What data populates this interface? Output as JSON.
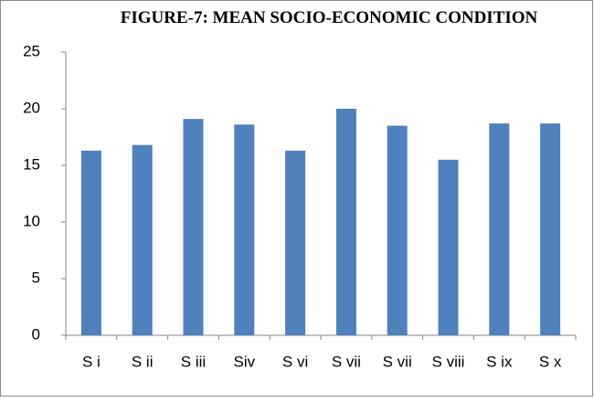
{
  "chart_data": {
    "type": "bar",
    "title": "FIGURE-7: MEAN SOCIO-ECONOMIC CONDITION",
    "categories": [
      "S i",
      "S ii",
      "S iii",
      "Siv",
      "S vi",
      "S vii",
      "S vii",
      "S viii",
      "S ix",
      "S x"
    ],
    "values": [
      16.3,
      16.8,
      19.1,
      18.6,
      16.3,
      20.0,
      18.5,
      15.5,
      18.7,
      18.7
    ],
    "color": "#4f81bd",
    "ylim": [
      0,
      25
    ],
    "yticks": [
      0,
      5,
      10,
      15,
      20,
      25
    ],
    "grid": false
  }
}
